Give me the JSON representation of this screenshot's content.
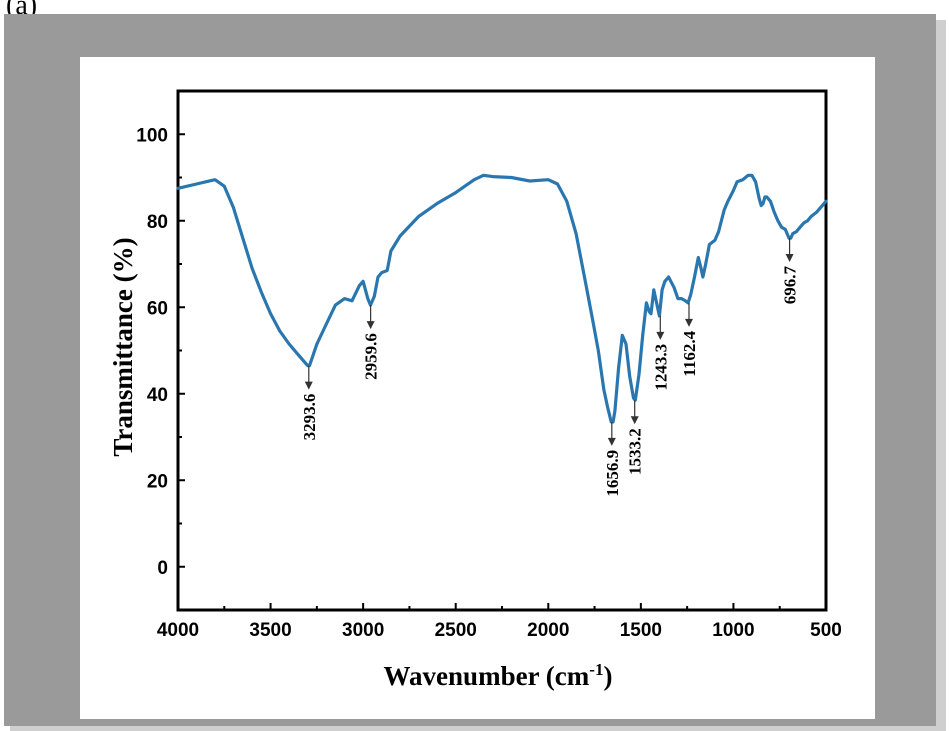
{
  "panel_label": "(a)",
  "colors": {
    "series": "#2a77b0",
    "frame": "#9a9a9a",
    "axis": "#000000"
  },
  "chart_data": {
    "type": "line",
    "title": "",
    "xlabel": "Wavenumber (cm-1)",
    "xlabel_main": "Wavenumber (cm",
    "xlabel_sup": "-1",
    "xlabel_end": ")",
    "ylabel": "Transmittance (%)",
    "xlim": [
      4000,
      500
    ],
    "ylim": [
      -10,
      110
    ],
    "x_ticks": [
      "4000",
      "3500",
      "3000",
      "2500",
      "2000",
      "1500",
      "1000",
      "500"
    ],
    "x_tick_values": [
      4000,
      3500,
      3000,
      2500,
      2000,
      1500,
      1000,
      500
    ],
    "y_ticks": [
      "0",
      "20",
      "40",
      "60",
      "80",
      "100"
    ],
    "y_tick_values": [
      0,
      20,
      40,
      60,
      80,
      100
    ],
    "grid": false,
    "series": [
      {
        "x": [
          4000,
          3900,
          3850,
          3800,
          3750,
          3700,
          3650,
          3600,
          3550,
          3500,
          3450,
          3400,
          3350,
          3300,
          3290,
          3250,
          3200,
          3150,
          3100,
          3060,
          3020,
          3000,
          2975,
          2960,
          2940,
          2920,
          2900,
          2870,
          2850,
          2800,
          2700,
          2600,
          2500,
          2400,
          2350,
          2300,
          2200,
          2100,
          2000,
          1950,
          1900,
          1850,
          1800,
          1760,
          1730,
          1700,
          1680,
          1660,
          1650,
          1640,
          1620,
          1600,
          1580,
          1560,
          1540,
          1530,
          1510,
          1490,
          1470,
          1455,
          1445,
          1430,
          1415,
          1400,
          1385,
          1370,
          1350,
          1320,
          1300,
          1280,
          1260,
          1245,
          1230,
          1210,
          1190,
          1175,
          1165,
          1150,
          1130,
          1100,
          1080,
          1050,
          1030,
          1000,
          980,
          950,
          920,
          900,
          880,
          860,
          850,
          840,
          830,
          820,
          800,
          780,
          760,
          740,
          720,
          700,
          690,
          680,
          660,
          640,
          620,
          600,
          580,
          550,
          520,
          500
        ],
        "y": [
          87.5,
          88.5,
          89.0,
          89.5,
          88.0,
          83.0,
          76.0,
          69.0,
          63.5,
          58.5,
          54.5,
          51.5,
          49.0,
          46.5,
          46.5,
          51.5,
          56.0,
          60.5,
          62.0,
          61.5,
          65.0,
          66.0,
          62.0,
          60.5,
          62.5,
          67.0,
          68.0,
          68.5,
          73.0,
          76.5,
          81.0,
          84.0,
          86.5,
          89.5,
          90.5,
          90.2,
          90.0,
          89.2,
          89.5,
          88.5,
          84.5,
          77.0,
          66.0,
          57.0,
          50.0,
          41.0,
          37.0,
          33.5,
          33.5,
          36.0,
          46.0,
          53.5,
          51.5,
          44.0,
          39.0,
          38.5,
          44.5,
          53.5,
          61.0,
          59.0,
          58.5,
          64.0,
          61.0,
          58.0,
          64.0,
          66.0,
          67.0,
          64.5,
          62.0,
          62.0,
          61.5,
          61.0,
          63.0,
          67.0,
          71.5,
          69.0,
          67.0,
          70.0,
          74.5,
          75.5,
          77.5,
          82.5,
          84.5,
          87.0,
          89.0,
          89.5,
          90.5,
          90.5,
          89.0,
          85.0,
          83.5,
          84.0,
          85.5,
          85.5,
          84.5,
          82.0,
          80.0,
          78.5,
          78.0,
          76.0,
          76.0,
          77.0,
          77.5,
          78.5,
          79.5,
          80.0,
          81.0,
          82.0,
          83.5,
          84.5
        ]
      }
    ],
    "annotations": [
      {
        "label": "3293.6",
        "x": 3293.6,
        "y_tip": 46.5,
        "line_to": 46.5
      },
      {
        "label": "2959.6",
        "x": 2959.6,
        "y_tip": 60.5,
        "line_to": 60.5
      },
      {
        "label": "1656.9",
        "x": 1656.9,
        "y_tip": 33.5,
        "line_to": 33.5
      },
      {
        "label": "1533.2",
        "x": 1533.2,
        "y_tip": 38.5,
        "line_to": 38.5
      },
      {
        "label": "1243.3",
        "x": 1395,
        "y_tip": 58.0,
        "line_to": 58.0
      },
      {
        "label": "1162.4",
        "x": 1240,
        "y_tip": 61.0,
        "line_to": 61.0
      },
      {
        "label": "696.7",
        "x": 696.7,
        "y_tip": 76.0,
        "line_to": 76.0
      }
    ]
  }
}
